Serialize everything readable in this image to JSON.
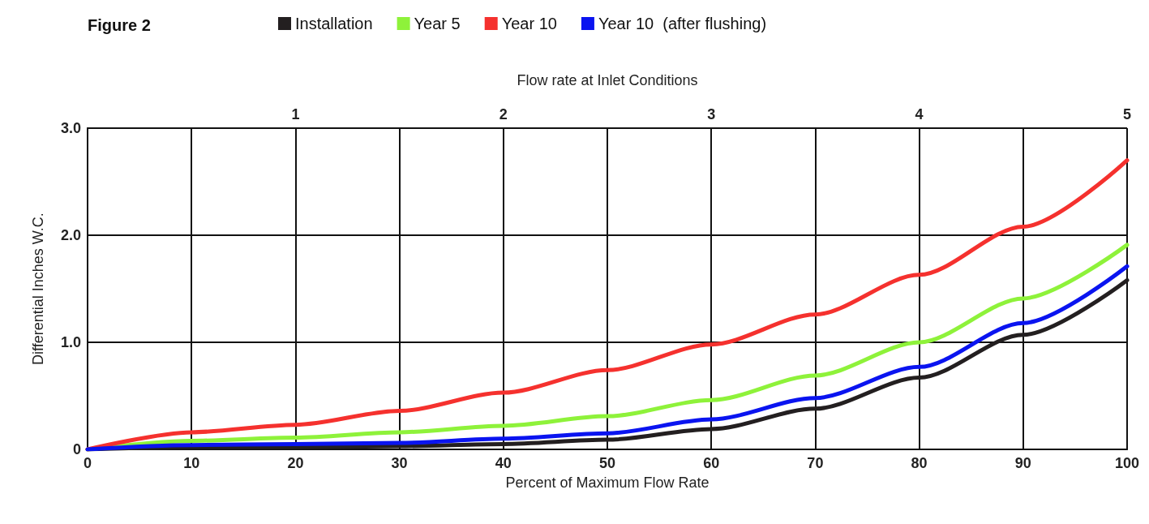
{
  "chart_data": {
    "type": "line",
    "title": "Figure 2",
    "xlabel": "Percent of Maximum Flow Rate",
    "ylabel": "Differential Inches W.C.",
    "x2label": "Flow rate at Inlet Conditions",
    "x": [
      0,
      10,
      20,
      30,
      40,
      50,
      60,
      70,
      80,
      90,
      100
    ],
    "series": [
      {
        "name": "Installation",
        "color": "#231f20",
        "values": [
          0,
          0.02,
          0.02,
          0.03,
          0.05,
          0.09,
          0.19,
          0.38,
          0.67,
          1.07,
          1.58
        ]
      },
      {
        "name": "Year 5",
        "color": "#8ef23a",
        "values": [
          0,
          0.08,
          0.11,
          0.16,
          0.22,
          0.31,
          0.46,
          0.69,
          1.0,
          1.41,
          1.91
        ]
      },
      {
        "name": "Year 10",
        "color": "#f5312e",
        "values": [
          0,
          0.16,
          0.23,
          0.36,
          0.53,
          0.74,
          0.98,
          1.26,
          1.63,
          2.08,
          2.7
        ]
      },
      {
        "name": "Year 10  (after flushing)",
        "color": "#0a14f0",
        "values": [
          0,
          0.04,
          0.05,
          0.06,
          0.1,
          0.15,
          0.28,
          0.48,
          0.77,
          1.18,
          1.71
        ]
      }
    ],
    "xlim": [
      0,
      100
    ],
    "xticks": [
      0,
      10,
      20,
      30,
      40,
      50,
      60,
      70,
      80,
      90,
      100
    ],
    "x2lim": [
      0,
      5
    ],
    "x2ticks": [
      1,
      2,
      3,
      4,
      5
    ],
    "ylim": [
      0,
      3
    ],
    "yticks": [
      {
        "value": 0,
        "label": "0"
      },
      {
        "value": 1,
        "label": "1.0"
      },
      {
        "value": 2,
        "label": "2.0"
      },
      {
        "value": 3,
        "label": "3.0"
      }
    ],
    "grid": true,
    "legend": "top",
    "marker": "none",
    "line_style": "solid"
  }
}
